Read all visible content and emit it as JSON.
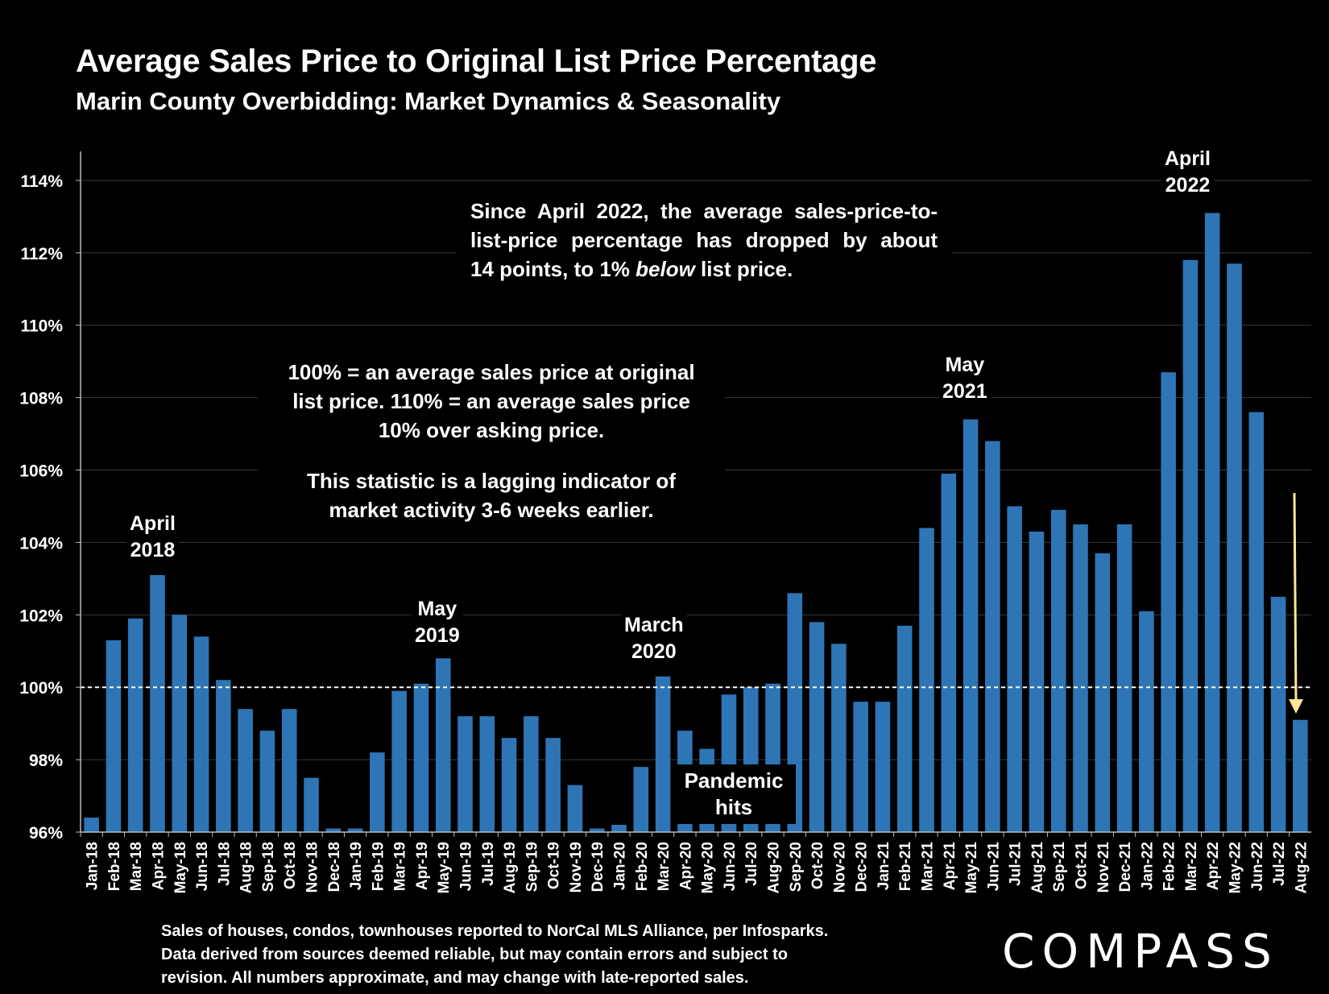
{
  "header": {
    "title": "Average Sales Price to Original List Price Percentage",
    "subtitle": "Marin County Overbidding: Market Dynamics & Seasonality"
  },
  "notes": {
    "drop_lines": [
      "Since April 2022, the average sales-price-to-",
      "list-price percentage has dropped by about",
      "14 points, to 1% ",
      "below",
      " list price."
    ],
    "definition_lines": [
      "100% = an average sales price at original",
      "list price. 110% = an average sales price",
      "10% over asking price."
    ],
    "lagging_lines": [
      "This statistic is a lagging indicator of",
      "market activity 3-6 weeks earlier."
    ],
    "pandemic_lines": [
      "Pandemic",
      "hits"
    ]
  },
  "annotations": {
    "april_2018": [
      "April",
      "2018"
    ],
    "may_2019": [
      "May",
      "2019"
    ],
    "march_2020": [
      "March",
      "2020"
    ],
    "may_2021": [
      "May",
      "2021"
    ],
    "april_2022": [
      "April",
      "2022"
    ]
  },
  "footnote": [
    "Sales of houses, condos, townhouses reported to NorCal MLS Alliance, per Infosparks.",
    "Data derived from sources deemed reliable, but may contain errors and subject to",
    "revision. All numbers approximate, and may change with late-reported sales."
  ],
  "logo": "COMPASS",
  "colors": {
    "bar": "#2E75B6",
    "background": "#000000",
    "text": "#FFFFFF",
    "gridline": "#3A3A3A",
    "reference_line": "#FFFFFF",
    "arrow": "#FFE699"
  },
  "chart_data": {
    "type": "bar",
    "title": "Average Sales Price to Original List Price Percentage",
    "subtitle": "Marin County Overbidding: Market Dynamics & Seasonality",
    "categories": [
      "Jan-18",
      "Feb-18",
      "Mar-18",
      "Apr-18",
      "May-18",
      "Jun-18",
      "Jul-18",
      "Aug-18",
      "Sep-18",
      "Oct-18",
      "Nov-18",
      "Dec-18",
      "Jan-19",
      "Feb-19",
      "Mar-19",
      "Apr-19",
      "May-19",
      "Jun-19",
      "Jul-19",
      "Aug-19",
      "Sep-19",
      "Oct-19",
      "Nov-19",
      "Dec-19",
      "Jan-20",
      "Feb-20",
      "Mar-20",
      "Apr-20",
      "May-20",
      "Jun-20",
      "Jul-20",
      "Aug-20",
      "Sep-20",
      "Oct-20",
      "Nov-20",
      "Dec-20",
      "Jan-21",
      "Feb-21",
      "Mar-21",
      "Apr-21",
      "May-21",
      "Jun-21",
      "Jul-21",
      "Aug-21",
      "Sep-21",
      "Oct-21",
      "Nov-21",
      "Dec-21",
      "Jan-22",
      "Feb-22",
      "Mar-22",
      "Apr-22",
      "May-22",
      "Jun-22",
      "Jul-22",
      "Aug-22"
    ],
    "values": [
      96.4,
      101.3,
      101.9,
      103.1,
      102.0,
      101.4,
      100.2,
      99.4,
      98.8,
      99.4,
      97.5,
      96.1,
      96.1,
      98.2,
      99.9,
      100.1,
      100.8,
      99.2,
      99.2,
      98.6,
      99.2,
      98.6,
      97.3,
      96.1,
      96.2,
      97.8,
      100.3,
      98.8,
      98.3,
      99.8,
      100.0,
      100.1,
      102.6,
      101.8,
      101.2,
      99.6,
      99.6,
      101.7,
      104.4,
      105.9,
      107.4,
      106.8,
      105.0,
      104.3,
      104.9,
      104.5,
      103.7,
      104.5,
      102.1,
      108.7,
      111.8,
      113.1,
      111.7,
      107.6,
      102.5,
      99.1
    ],
    "y_ticks": [
      "96%",
      "98%",
      "100%",
      "102%",
      "104%",
      "106%",
      "108%",
      "110%",
      "112%",
      "114%"
    ],
    "ylim": [
      96,
      114.8
    ],
    "reference_line": 100,
    "grid": true,
    "xlabel": "",
    "ylabel": ""
  }
}
